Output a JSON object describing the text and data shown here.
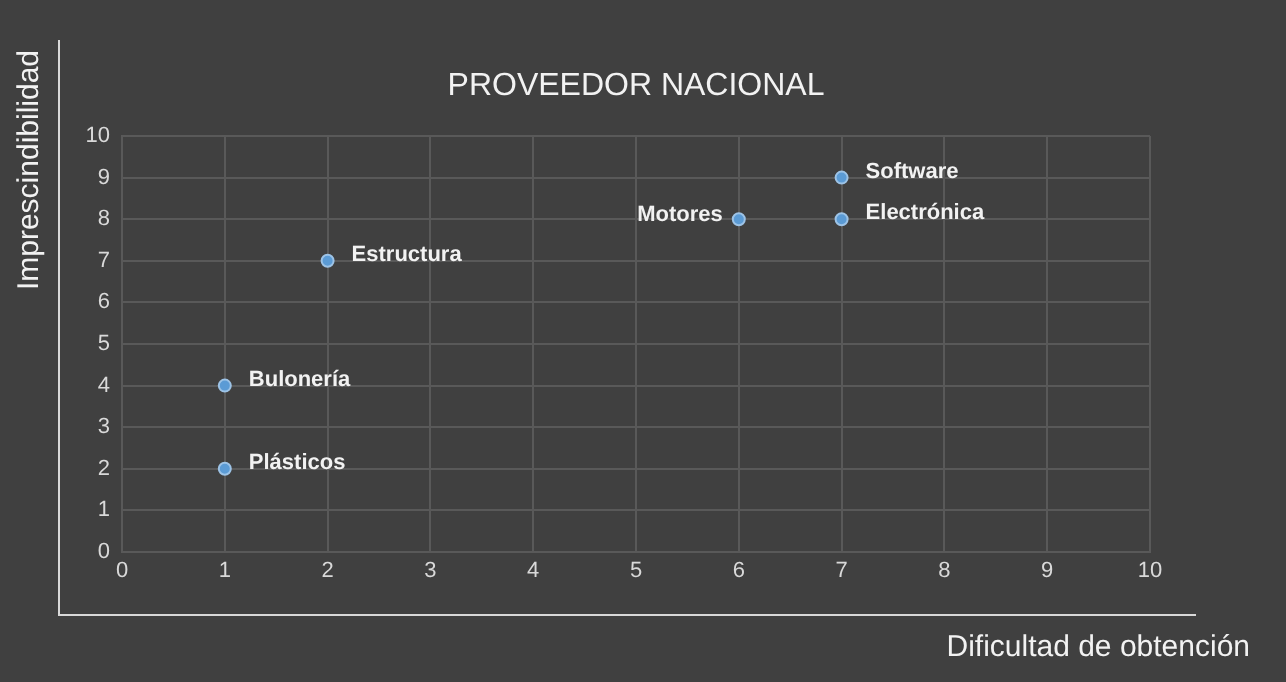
{
  "chart_data": {
    "type": "scatter",
    "title": "PROVEEDOR NACIONAL",
    "xlabel": "Dificultad de obtención",
    "ylabel": "Imprescindibilidad",
    "x": [
      1,
      1,
      2,
      6,
      7,
      7
    ],
    "values": [
      2,
      4,
      7,
      8,
      8,
      9
    ],
    "color": "#5b9bd5",
    "marker": "circle",
    "xlim": [
      0,
      10
    ],
    "xticks": [
      0,
      1,
      2,
      3,
      4,
      5,
      6,
      7,
      8,
      9,
      10
    ],
    "ylim": [
      0,
      10
    ],
    "yticks": [
      0,
      1,
      2,
      3,
      4,
      5,
      6,
      7,
      8,
      9,
      10
    ],
    "grid": true,
    "annotations": [
      {
        "text": "Plásticos",
        "x": 1,
        "y": 2
      },
      {
        "text": "Bulonería",
        "x": 1,
        "y": 4
      },
      {
        "text": "Estructura",
        "x": 2,
        "y": 7
      },
      {
        "text": "Motores",
        "x": 6,
        "y": 8
      },
      {
        "text": "Electrónica",
        "x": 7,
        "y": 8
      },
      {
        "text": "Software",
        "x": 7,
        "y": 9
      }
    ]
  }
}
